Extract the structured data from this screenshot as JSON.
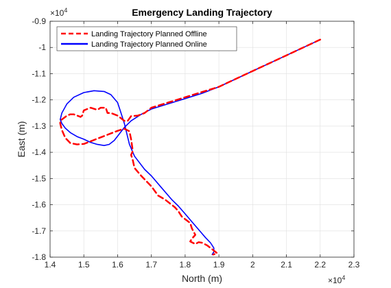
{
  "chart_data": {
    "type": "line",
    "title": "Emergency Landing Trajectory",
    "xlabel": "North (m)",
    "ylabel": "East (m)",
    "xlim": [
      14000,
      23000
    ],
    "ylim": [
      -18000,
      -9000
    ],
    "x_exponent_label": "×10",
    "x_exponent_power": "4",
    "y_exponent_label": "×10",
    "y_exponent_power": "4",
    "x_ticks": [
      {
        "value": 14000,
        "label": "1.4"
      },
      {
        "value": 15000,
        "label": "1.5"
      },
      {
        "value": 16000,
        "label": "1.6"
      },
      {
        "value": 17000,
        "label": "1.7"
      },
      {
        "value": 18000,
        "label": "1.8"
      },
      {
        "value": 19000,
        "label": "1.9"
      },
      {
        "value": 20000,
        "label": "2"
      },
      {
        "value": 21000,
        "label": "2.1"
      },
      {
        "value": 22000,
        "label": "2.2"
      },
      {
        "value": 23000,
        "label": "2.3"
      }
    ],
    "y_ticks": [
      {
        "value": -9000,
        "label": "-0.9"
      },
      {
        "value": -10000,
        "label": "-1"
      },
      {
        "value": -11000,
        "label": "-1.1"
      },
      {
        "value": -12000,
        "label": "-1.2"
      },
      {
        "value": -13000,
        "label": "-1.3"
      },
      {
        "value": -14000,
        "label": "-1.4"
      },
      {
        "value": -15000,
        "label": "-1.5"
      },
      {
        "value": -16000,
        "label": "-1.6"
      },
      {
        "value": -17000,
        "label": "-1.7"
      },
      {
        "value": -18000,
        "label": "-1.8"
      }
    ],
    "grid": true,
    "legend_position": "top-left",
    "series": [
      {
        "name": "Landing Trajectory Planned Offline",
        "color": "#ff0000",
        "style": "dashed",
        "x": [
          22000,
          21000,
          20000,
          19000,
          18000,
          17500,
          17000,
          16800,
          16600,
          16400,
          16300,
          16200,
          16000,
          15800,
          15700,
          15650,
          15600,
          15500,
          15400,
          15200,
          15100,
          15000,
          14950,
          14900,
          14850,
          14700,
          14600,
          14500,
          14450,
          14400,
          14350,
          14300,
          14300,
          14350,
          14450,
          14600,
          14800,
          15000,
          15200,
          15400,
          15600,
          15800,
          16000,
          16200,
          16350,
          16400,
          16450,
          16400,
          16450,
          16500,
          16700,
          17000,
          17200,
          17400,
          17600,
          17700,
          17800,
          17900,
          17950,
          18050,
          18150,
          18200,
          18300,
          18200,
          18150,
          18300,
          18400,
          18500,
          18650,
          18800,
          18900,
          18950,
          18880,
          18830
        ],
        "y": [
          -9700,
          -10300,
          -10900,
          -11500,
          -11900,
          -12100,
          -12300,
          -12500,
          -12600,
          -12620,
          -12800,
          -12800,
          -12600,
          -12500,
          -12500,
          -12300,
          -12300,
          -12300,
          -12380,
          -12300,
          -12350,
          -12400,
          -12600,
          -12650,
          -12620,
          -12550,
          -12550,
          -12600,
          -12650,
          -12700,
          -12750,
          -12800,
          -12900,
          -13150,
          -13450,
          -13650,
          -13700,
          -13680,
          -13580,
          -13480,
          -13380,
          -13280,
          -13180,
          -13100,
          -13200,
          -13500,
          -13950,
          -14100,
          -14300,
          -14600,
          -14900,
          -15300,
          -15650,
          -15800,
          -16000,
          -16100,
          -16250,
          -16450,
          -16500,
          -16600,
          -16700,
          -16900,
          -17150,
          -17300,
          -17400,
          -17500,
          -17430,
          -17450,
          -17550,
          -17700,
          -17800,
          -17850,
          -17880,
          -17900
        ]
      },
      {
        "name": "Landing Trajectory Planned Online",
        "color": "#0000ff",
        "style": "solid",
        "x": [
          22000,
          21500,
          21000,
          20500,
          20000,
          19500,
          19000,
          18500,
          18000,
          17500,
          17000,
          16700,
          16400,
          16200,
          16050,
          15900,
          15750,
          15600,
          15400,
          15200,
          15000,
          14800,
          14600,
          14450,
          14350,
          14300,
          14350,
          14500,
          14700,
          15000,
          15300,
          15600,
          15800,
          16000,
          16100,
          16200,
          16350,
          16500,
          16800,
          17000,
          17300,
          17600,
          17800,
          18000,
          18200,
          18400,
          18600,
          18750,
          18850,
          18850,
          18800
        ],
        "y": [
          -9700,
          -10000,
          -10300,
          -10600,
          -10900,
          -11200,
          -11500,
          -11750,
          -11950,
          -12150,
          -12350,
          -12550,
          -12800,
          -13050,
          -13300,
          -13550,
          -13700,
          -13740,
          -13700,
          -13620,
          -13500,
          -13400,
          -13250,
          -13080,
          -12900,
          -12750,
          -12500,
          -12150,
          -11900,
          -11720,
          -11650,
          -11680,
          -11800,
          -12100,
          -12500,
          -12900,
          -13700,
          -14150,
          -14650,
          -14900,
          -15350,
          -15800,
          -16050,
          -16350,
          -16650,
          -16950,
          -17250,
          -17450,
          -17650,
          -17800,
          -17900
        ]
      }
    ]
  }
}
